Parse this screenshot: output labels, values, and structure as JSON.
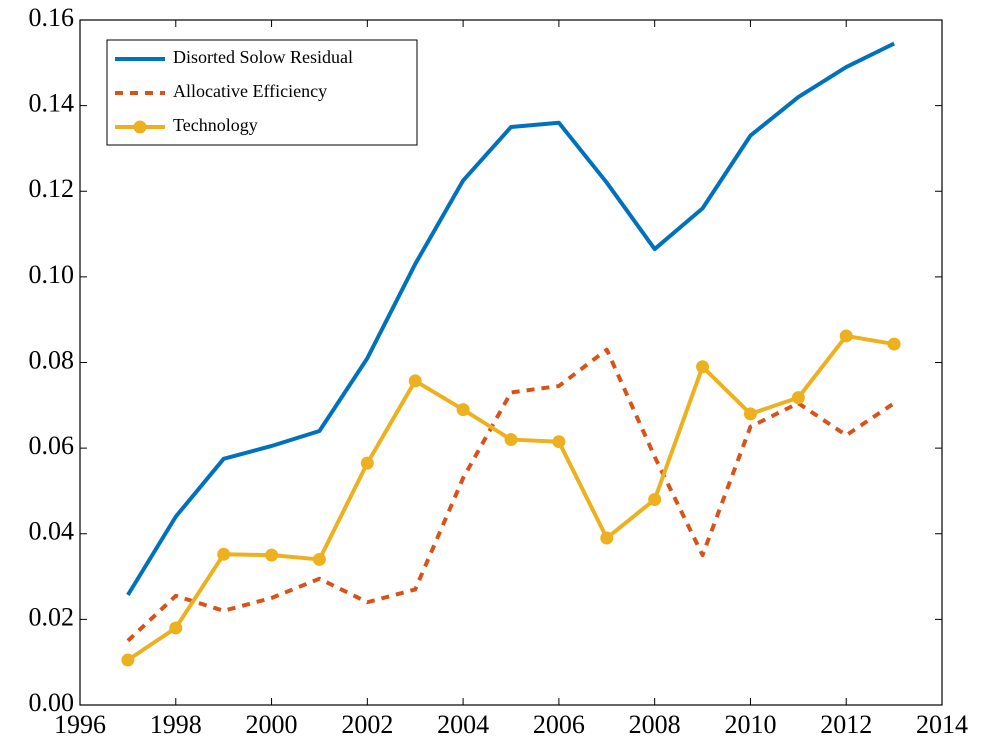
{
  "chart_data": {
    "type": "line",
    "x": [
      1997,
      1998,
      1999,
      2000,
      2001,
      2002,
      2003,
      2004,
      2005,
      2006,
      2007,
      2008,
      2009,
      2010,
      2011,
      2012,
      2013
    ],
    "series": [
      {
        "name": "Disorted Solow Residual",
        "color": "#0072bd",
        "dash": "solid",
        "marker": "none",
        "values": [
          0.0257,
          0.044,
          0.0575,
          0.0605,
          0.064,
          0.081,
          0.103,
          0.1225,
          0.135,
          0.136,
          0.122,
          0.1065,
          0.116,
          0.133,
          0.142,
          0.149,
          0.1545
        ]
      },
      {
        "name": "Allocative Efficiency",
        "color": "#d95319",
        "dash": "dashed",
        "marker": "none",
        "values": [
          0.015,
          0.0255,
          0.022,
          0.025,
          0.0295,
          0.024,
          0.027,
          0.053,
          0.073,
          0.0745,
          0.083,
          0.058,
          0.035,
          0.065,
          0.0705,
          0.063,
          0.0705
        ]
      },
      {
        "name": "Technology",
        "color": "#edb120",
        "dash": "solid",
        "marker": "circle",
        "values": [
          0.0105,
          0.018,
          0.0352,
          0.035,
          0.034,
          0.0565,
          0.0757,
          0.069,
          0.062,
          0.0615,
          0.039,
          0.048,
          0.079,
          0.068,
          0.0718,
          0.0862,
          0.0843
        ]
      }
    ],
    "xlim": [
      1996,
      2014
    ],
    "xticks": [
      1996,
      1998,
      2000,
      2002,
      2004,
      2006,
      2008,
      2010,
      2012,
      2014
    ],
    "ylim": [
      0,
      0.16
    ],
    "yticks": [
      {
        "value": 0,
        "label": "0.00"
      },
      0.02,
      0.04,
      0.06,
      0.08,
      {
        "value": 0.1,
        "label": "0.10"
      },
      0.12,
      0.14,
      0.16
    ],
    "grid": false,
    "legend": "upper left"
  }
}
